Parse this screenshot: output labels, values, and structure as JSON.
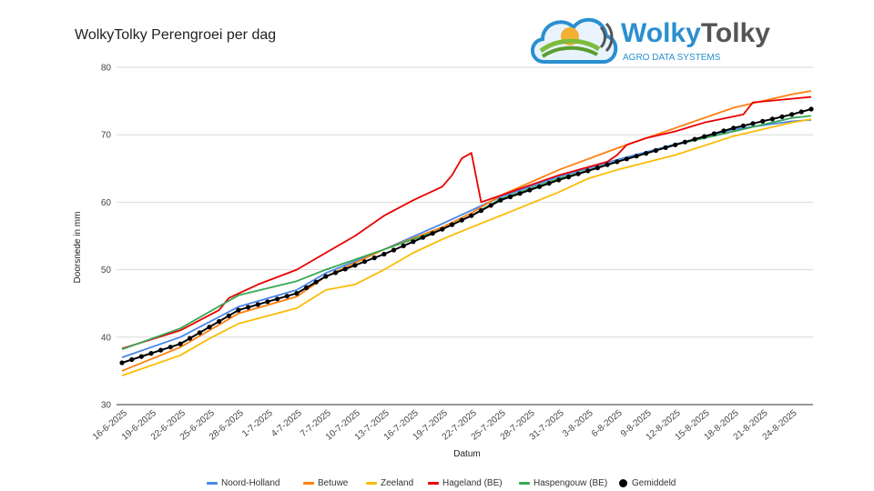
{
  "logo": {
    "brand": "WolkyTolky",
    "tagline": "AGRO DATA SYSTEMS",
    "brand_color": "#2a8fd0",
    "tagline_color": "#2a8fd0",
    "accent_green": "#7dbb3c",
    "accent_yellow": "#f2b134"
  },
  "chart_data": {
    "type": "line",
    "title": "WolkyTolky Perengroei per dag",
    "xlabel": "Datum",
    "ylabel": "Doorsnede in mm",
    "ylim": [
      30,
      80
    ],
    "yticks": [
      30,
      40,
      50,
      60,
      70,
      80
    ],
    "grid": "horizontal",
    "legend_position": "bottom",
    "x_start": "16-6-2025",
    "x_end": "26-8-2025",
    "xticks": [
      "16-6-2025",
      "19-6-2025",
      "22-6-2025",
      "25-6-2025",
      "28-6-2025",
      "1-7-2025",
      "4-7-2025",
      "7-7-2025",
      "10-7-2025",
      "13-7-2025",
      "16-7-2025",
      "19-7-2025",
      "22-7-2025",
      "25-7-2025",
      "28-7-2025",
      "31-7-2025",
      "3-8-2025",
      "6-8-2025",
      "9-8-2025",
      "12-8-2025",
      "15-8-2025",
      "18-8-2025",
      "21-8-2025",
      "24-8-2025"
    ],
    "series": [
      {
        "name": "Noord-Holland",
        "color": "#4a86e8",
        "points": [
          [
            "16-6-2025",
            37.0
          ],
          [
            "22-6-2025",
            40.0
          ],
          [
            "28-6-2025",
            44.5
          ],
          [
            "4-7-2025",
            47.0
          ],
          [
            "7-7-2025",
            49.5
          ],
          [
            "13-7-2025",
            53.0
          ],
          [
            "19-7-2025",
            56.8
          ],
          [
            "22-7-2025",
            58.8
          ],
          [
            "25-7-2025",
            60.8
          ],
          [
            "31-7-2025",
            63.8
          ],
          [
            "6-8-2025",
            66.3
          ],
          [
            "12-8-2025",
            68.6
          ],
          [
            "18-8-2025",
            70.8
          ],
          [
            "24-8-2025",
            72.0
          ],
          [
            "26-8-2025",
            72.2
          ]
        ]
      },
      {
        "name": "Betuwe",
        "color": "#ff7f0e",
        "points": [
          [
            "16-6-2025",
            35.0
          ],
          [
            "22-6-2025",
            38.5
          ],
          [
            "28-6-2025",
            43.5
          ],
          [
            "4-7-2025",
            46.0
          ],
          [
            "7-7-2025",
            49.0
          ],
          [
            "13-7-2025",
            53.0
          ],
          [
            "19-7-2025",
            56.3
          ],
          [
            "22-7-2025",
            58.4
          ],
          [
            "25-7-2025",
            61.0
          ],
          [
            "31-7-2025",
            64.8
          ],
          [
            "6-8-2025",
            68.0
          ],
          [
            "12-8-2025",
            71.0
          ],
          [
            "18-8-2025",
            74.0
          ],
          [
            "24-8-2025",
            76.0
          ],
          [
            "26-8-2025",
            76.5
          ]
        ]
      },
      {
        "name": "Zeeland",
        "color": "#fbbc04",
        "points": [
          [
            "16-6-2025",
            34.3
          ],
          [
            "22-6-2025",
            37.3
          ],
          [
            "25-6-2025",
            39.8
          ],
          [
            "28-6-2025",
            42.0
          ],
          [
            "4-7-2025",
            44.3
          ],
          [
            "7-7-2025",
            47.0
          ],
          [
            "10-7-2025",
            47.8
          ],
          [
            "13-7-2025",
            50.0
          ],
          [
            "16-7-2025",
            52.5
          ],
          [
            "19-7-2025",
            54.5
          ],
          [
            "22-7-2025",
            56.3
          ],
          [
            "25-7-2025",
            58.0
          ],
          [
            "31-7-2025",
            61.5
          ],
          [
            "3-8-2025",
            63.5
          ],
          [
            "6-8-2025",
            64.8
          ],
          [
            "12-8-2025",
            67.0
          ],
          [
            "18-8-2025",
            69.8
          ],
          [
            "24-8-2025",
            71.8
          ],
          [
            "26-8-2025",
            72.3
          ]
        ]
      },
      {
        "name": "Hageland (BE)",
        "color": "#ea0000",
        "points": [
          [
            "16-6-2025",
            38.3
          ],
          [
            "22-6-2025",
            41.0
          ],
          [
            "26-6-2025",
            44.0
          ],
          [
            "27-6-2025",
            45.8
          ],
          [
            "30-6-2025",
            47.8
          ],
          [
            "4-7-2025",
            50.0
          ],
          [
            "7-7-2025",
            52.5
          ],
          [
            "10-7-2025",
            55.0
          ],
          [
            "13-7-2025",
            58.0
          ],
          [
            "16-7-2025",
            60.3
          ],
          [
            "19-7-2025",
            62.3
          ],
          [
            "20-7-2025",
            64.0
          ],
          [
            "21-7-2025",
            66.5
          ],
          [
            "22-7-2025",
            67.3
          ],
          [
            "23-7-2025",
            60.0
          ],
          [
            "25-7-2025",
            61.0
          ],
          [
            "31-7-2025",
            64.0
          ],
          [
            "5-8-2025",
            66.0
          ],
          [
            "6-8-2025",
            67.0
          ],
          [
            "7-8-2025",
            68.5
          ],
          [
            "9-8-2025",
            69.5
          ],
          [
            "12-8-2025",
            70.5
          ],
          [
            "15-8-2025",
            71.8
          ],
          [
            "19-8-2025",
            73.0
          ],
          [
            "20-8-2025",
            74.8
          ],
          [
            "23-8-2025",
            75.2
          ],
          [
            "26-8-2025",
            75.6
          ]
        ]
      },
      {
        "name": "Haspengouw (BE)",
        "color": "#34a853",
        "points": [
          [
            "16-6-2025",
            38.2
          ],
          [
            "22-6-2025",
            41.3
          ],
          [
            "28-6-2025",
            46.2
          ],
          [
            "4-7-2025",
            48.3
          ],
          [
            "7-7-2025",
            50.0
          ],
          [
            "13-7-2025",
            53.0
          ],
          [
            "19-7-2025",
            56.0
          ],
          [
            "22-7-2025",
            58.0
          ],
          [
            "25-7-2025",
            60.5
          ],
          [
            "31-7-2025",
            63.5
          ],
          [
            "6-8-2025",
            66.0
          ],
          [
            "12-8-2025",
            68.5
          ],
          [
            "18-8-2025",
            70.5
          ],
          [
            "24-8-2025",
            72.5
          ],
          [
            "26-8-2025",
            72.8
          ]
        ]
      },
      {
        "name": "Gemiddeld",
        "color": "#000000",
        "markers": true,
        "points": [
          [
            "16-6-2025",
            36.2
          ],
          [
            "22-6-2025",
            39.0
          ],
          [
            "28-6-2025",
            44.0
          ],
          [
            "4-7-2025",
            46.5
          ],
          [
            "7-7-2025",
            49.0
          ],
          [
            "13-7-2025",
            52.3
          ],
          [
            "19-7-2025",
            56.0
          ],
          [
            "22-7-2025",
            58.0
          ],
          [
            "25-7-2025",
            60.3
          ],
          [
            "31-7-2025",
            63.3
          ],
          [
            "6-8-2025",
            66.0
          ],
          [
            "12-8-2025",
            68.5
          ],
          [
            "18-8-2025",
            71.0
          ],
          [
            "24-8-2025",
            73.0
          ],
          [
            "26-8-2025",
            73.8
          ]
        ]
      }
    ]
  }
}
